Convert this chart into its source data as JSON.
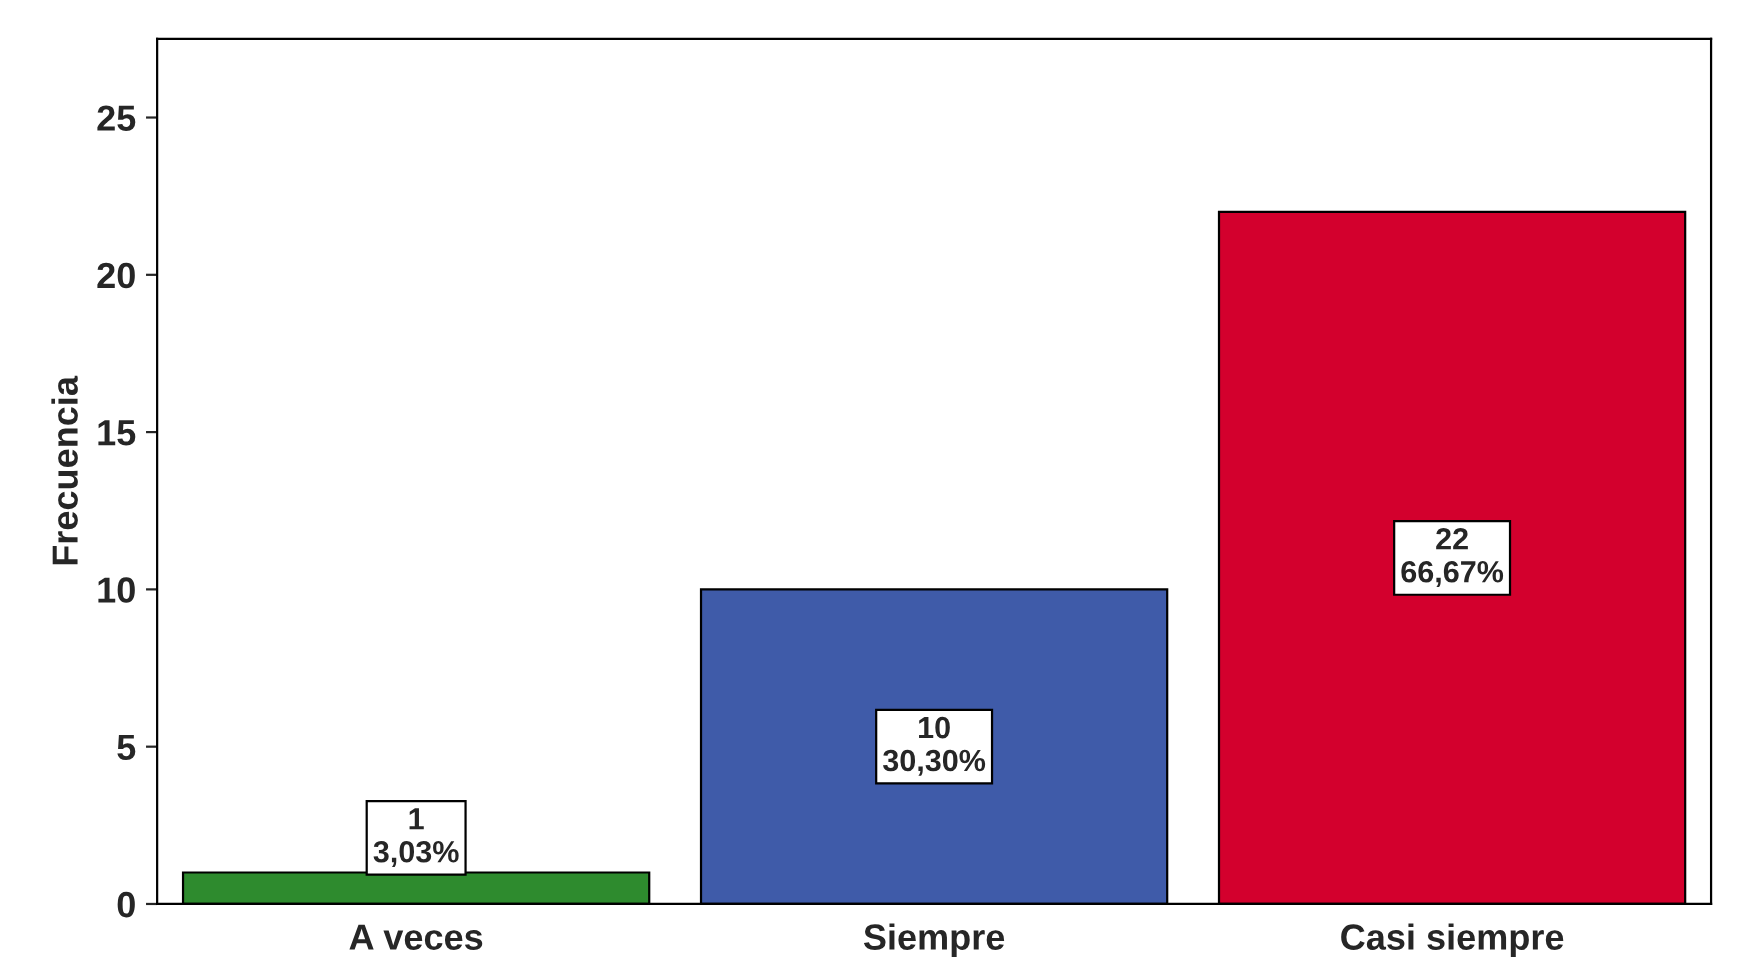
{
  "chart_data": {
    "type": "bar",
    "ylabel": "Frecuencia",
    "categories": [
      "A veces",
      "Siempre",
      "Casi siempre"
    ],
    "values": [
      1,
      10,
      22
    ],
    "colors": [
      "#2e8b2e",
      "#3f5ba9",
      "#d3002d"
    ],
    "value_labels": [
      "1\n3,03%",
      "10\n30,30%",
      "22\n66,67%"
    ],
    "ylim": [
      0,
      27.5
    ],
    "yticks": [
      0,
      5,
      10,
      15,
      20,
      25
    ],
    "grid": false
  }
}
